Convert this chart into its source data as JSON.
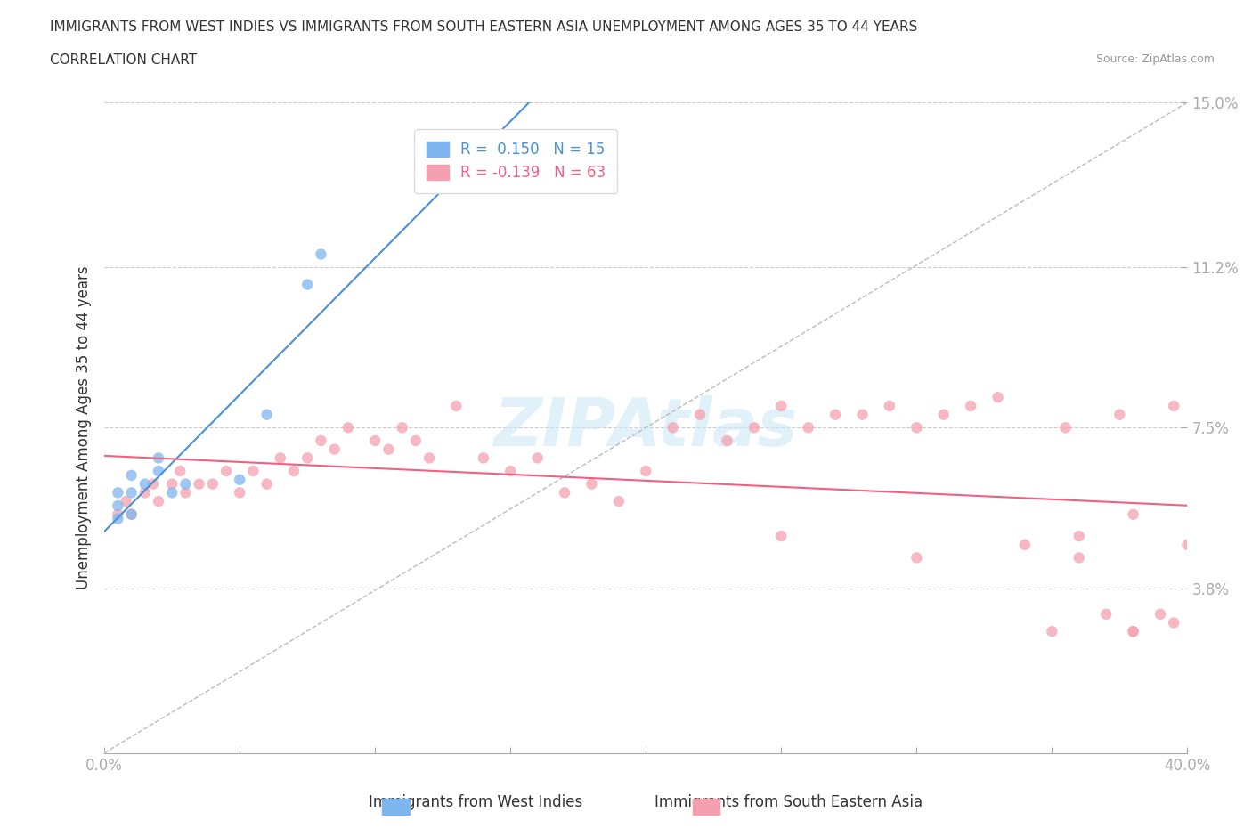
{
  "title_line1": "IMMIGRANTS FROM WEST INDIES VS IMMIGRANTS FROM SOUTH EASTERN ASIA UNEMPLOYMENT AMONG AGES 35 TO 44 YEARS",
  "title_line2": "CORRELATION CHART",
  "source_text": "Source: ZipAtlas.com",
  "ylabel": "Unemployment Among Ages 35 to 44 years",
  "xlim": [
    0.0,
    0.4
  ],
  "ylim": [
    0.0,
    0.15
  ],
  "xticks": [
    0.0,
    0.05,
    0.1,
    0.15,
    0.2,
    0.25,
    0.3,
    0.35,
    0.4
  ],
  "xticklabels": [
    "0.0%",
    "",
    "",
    "",
    "",
    "",
    "",
    "",
    "40.0%"
  ],
  "ytick_values": [
    0.038,
    0.075,
    0.112,
    0.15
  ],
  "ytick_labels": [
    "3.8%",
    "7.5%",
    "11.2%",
    "15.0%"
  ],
  "grid_color": "#cccccc",
  "background_color": "#ffffff",
  "west_indies_color": "#7eb6f0",
  "south_east_asia_color": "#f5a0b0",
  "west_indies_line_color": "#4a90d9",
  "south_east_asia_line_color": "#f06080",
  "legend_R_west_indies": "R =  0.150",
  "legend_N_west_indies": "N = 15",
  "legend_R_south_east_asia": "R = -0.139",
  "legend_N_south_east_asia": "N = 63",
  "west_indies_x": [
    0.005,
    0.005,
    0.005,
    0.01,
    0.01,
    0.01,
    0.015,
    0.02,
    0.02,
    0.025,
    0.03,
    0.05,
    0.06,
    0.075,
    0.08
  ],
  "west_indies_y": [
    0.054,
    0.057,
    0.06,
    0.055,
    0.06,
    0.064,
    0.062,
    0.065,
    0.068,
    0.06,
    0.062,
    0.063,
    0.078,
    0.108,
    0.115
  ],
  "south_east_asia_x": [
    0.005,
    0.008,
    0.01,
    0.015,
    0.018,
    0.02,
    0.025,
    0.028,
    0.03,
    0.035,
    0.04,
    0.045,
    0.05,
    0.055,
    0.06,
    0.065,
    0.07,
    0.075,
    0.08,
    0.085,
    0.09,
    0.1,
    0.105,
    0.11,
    0.115,
    0.12,
    0.13,
    0.14,
    0.15,
    0.16,
    0.17,
    0.18,
    0.19,
    0.2,
    0.21,
    0.22,
    0.23,
    0.24,
    0.25,
    0.26,
    0.27,
    0.28,
    0.29,
    0.3,
    0.31,
    0.32,
    0.33,
    0.34,
    0.25,
    0.3,
    0.35,
    0.36,
    0.37,
    0.38,
    0.39,
    0.4,
    0.355,
    0.375,
    0.395,
    0.38,
    0.395,
    0.36,
    0.38
  ],
  "south_east_asia_y": [
    0.055,
    0.058,
    0.055,
    0.06,
    0.062,
    0.058,
    0.062,
    0.065,
    0.06,
    0.062,
    0.062,
    0.065,
    0.06,
    0.065,
    0.062,
    0.068,
    0.065,
    0.068,
    0.072,
    0.07,
    0.075,
    0.072,
    0.07,
    0.075,
    0.072,
    0.068,
    0.08,
    0.068,
    0.065,
    0.068,
    0.06,
    0.062,
    0.058,
    0.065,
    0.075,
    0.078,
    0.072,
    0.075,
    0.08,
    0.075,
    0.078,
    0.078,
    0.08,
    0.075,
    0.078,
    0.08,
    0.082,
    0.048,
    0.05,
    0.045,
    0.028,
    0.045,
    0.032,
    0.028,
    0.032,
    0.048,
    0.075,
    0.078,
    0.08,
    0.028,
    0.03,
    0.05,
    0.055
  ],
  "watermark_text": "ZIPAtlas",
  "marker_size": 80,
  "marker_alpha": 0.75,
  "dashed_line_color": "#bbbbbb",
  "tick_color": "#aaaaaa",
  "label_color": "#4a90d9",
  "text_color": "#333333",
  "source_color": "#999999"
}
